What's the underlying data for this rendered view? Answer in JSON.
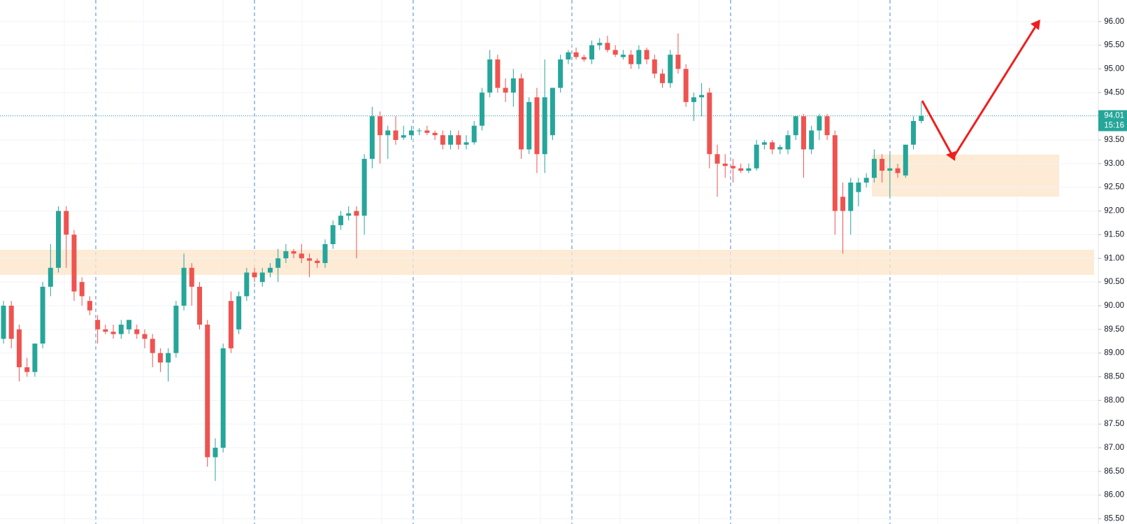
{
  "chart_data": {
    "type": "candlestick",
    "up_color": "#26a69a",
    "down_color": "#ef5350",
    "ylim": [
      85.39,
      96.455
    ],
    "yticks": [
      {
        "value": 85.5,
        "label": "85.50"
      },
      {
        "value": 86,
        "label": "86.00"
      },
      {
        "value": 86.5,
        "label": "86.50"
      },
      {
        "value": 87,
        "label": "87.00"
      },
      {
        "value": 87.5,
        "label": "87.50"
      },
      {
        "value": 88,
        "label": "88.00"
      },
      {
        "value": 88.5,
        "label": "88.50"
      },
      {
        "value": 89,
        "label": "89.00"
      },
      {
        "value": 89.5,
        "label": "89.50"
      },
      {
        "value": 90,
        "label": "90.00"
      },
      {
        "value": 90.5,
        "label": "90.50"
      },
      {
        "value": 91,
        "label": "91.00"
      },
      {
        "value": 91.5,
        "label": "91.50"
      },
      {
        "value": 92,
        "label": "92.00"
      },
      {
        "value": 92.5,
        "label": "92.50"
      },
      {
        "value": 93,
        "label": "93.00"
      },
      {
        "value": 93.5,
        "label": "93.50"
      },
      {
        "value": 94,
        "label": "94.00"
      },
      {
        "value": 94.5,
        "label": "94.50"
      },
      {
        "value": 95,
        "label": "95.00"
      },
      {
        "value": 95.5,
        "label": "95.50"
      },
      {
        "value": 96,
        "label": "96.00"
      }
    ],
    "grid": true,
    "last_price": {
      "value": 94.01,
      "label": "94.01"
    },
    "countdown": "15:16",
    "ohlc": [
      [
        89.3,
        90.1,
        89.2,
        90.0
      ],
      [
        90.0,
        90.1,
        89.1,
        89.3
      ],
      [
        89.5,
        89.6,
        88.4,
        88.7
      ],
      [
        88.7,
        88.9,
        88.5,
        88.6
      ],
      [
        88.6,
        89.2,
        88.5,
        89.2
      ],
      [
        89.2,
        90.5,
        89.1,
        90.4
      ],
      [
        90.4,
        91.3,
        90.2,
        90.8
      ],
      [
        90.8,
        92.1,
        90.7,
        92.0
      ],
      [
        92.0,
        92.1,
        90.8,
        91.5
      ],
      [
        91.5,
        91.6,
        90.1,
        90.3
      ],
      [
        90.5,
        90.6,
        90.0,
        90.2
      ],
      [
        90.1,
        90.2,
        89.8,
        89.9
      ],
      [
        89.7,
        89.8,
        89.2,
        89.5
      ],
      [
        89.5,
        89.6,
        89.4,
        89.45
      ],
      [
        89.45,
        89.6,
        89.3,
        89.4
      ],
      [
        89.4,
        89.7,
        89.3,
        89.6
      ],
      [
        89.5,
        89.7,
        89.4,
        89.7
      ],
      [
        89.5,
        89.6,
        89.3,
        89.4
      ],
      [
        89.4,
        89.5,
        89.1,
        89.3
      ],
      [
        89.3,
        89.4,
        88.7,
        89.0
      ],
      [
        89.0,
        89.1,
        88.6,
        88.8
      ],
      [
        88.8,
        89.1,
        88.4,
        89.0
      ],
      [
        89.0,
        90.1,
        88.9,
        90.0
      ],
      [
        90.0,
        91.1,
        89.9,
        90.8
      ],
      [
        90.8,
        90.9,
        90.0,
        90.4
      ],
      [
        90.4,
        90.5,
        89.5,
        89.6
      ],
      [
        89.6,
        89.7,
        86.6,
        86.8
      ],
      [
        86.8,
        87.2,
        86.3,
        87.0
      ],
      [
        87.0,
        89.2,
        86.9,
        89.1
      ],
      [
        90.1,
        90.3,
        89.0,
        89.1
      ],
      [
        89.5,
        90.3,
        89.4,
        90.2
      ],
      [
        90.2,
        90.8,
        90.1,
        90.7
      ],
      [
        90.7,
        90.8,
        90.5,
        90.6
      ],
      [
        90.5,
        90.8,
        90.4,
        90.7
      ],
      [
        90.7,
        90.9,
        90.6,
        90.8
      ],
      [
        90.8,
        91.2,
        90.5,
        91.0
      ],
      [
        91.0,
        91.3,
        90.9,
        91.15
      ],
      [
        91.15,
        91.2,
        91.0,
        91.1
      ],
      [
        91.1,
        91.3,
        90.9,
        91.0
      ],
      [
        91.0,
        91.1,
        90.6,
        90.95
      ],
      [
        90.95,
        91.0,
        90.8,
        90.9
      ],
      [
        90.9,
        91.4,
        90.8,
        91.3
      ],
      [
        91.3,
        91.8,
        91.2,
        91.7
      ],
      [
        91.7,
        92.0,
        91.6,
        91.9
      ],
      [
        91.9,
        92.1,
        91.8,
        91.95
      ],
      [
        92.0,
        92.1,
        91.0,
        91.9
      ],
      [
        91.9,
        93.2,
        91.5,
        93.1
      ],
      [
        93.1,
        94.2,
        92.9,
        94.0
      ],
      [
        94.0,
        94.1,
        93.0,
        93.6
      ],
      [
        93.6,
        93.8,
        93.1,
        93.7
      ],
      [
        93.7,
        94.0,
        93.4,
        93.5
      ],
      [
        93.55,
        93.8,
        93.5,
        93.6
      ],
      [
        93.6,
        93.8,
        93.5,
        93.7
      ],
      [
        93.7,
        93.75,
        93.6,
        93.7
      ],
      [
        93.7,
        93.8,
        93.6,
        93.65
      ],
      [
        93.65,
        93.7,
        93.5,
        93.6
      ],
      [
        93.6,
        93.7,
        93.3,
        93.4
      ],
      [
        93.4,
        93.7,
        93.3,
        93.6
      ],
      [
        93.6,
        93.7,
        93.3,
        93.4
      ],
      [
        93.4,
        93.6,
        93.3,
        93.45
      ],
      [
        93.45,
        93.9,
        93.4,
        93.8
      ],
      [
        93.8,
        94.6,
        93.7,
        94.5
      ],
      [
        94.5,
        95.4,
        94.4,
        95.2
      ],
      [
        95.2,
        95.3,
        94.5,
        94.6
      ],
      [
        94.6,
        94.8,
        94.3,
        94.5
      ],
      [
        94.5,
        95.0,
        94.2,
        94.8
      ],
      [
        94.8,
        94.9,
        93.1,
        93.3
      ],
      [
        93.3,
        94.4,
        93.2,
        94.3
      ],
      [
        94.4,
        94.6,
        92.8,
        93.2
      ],
      [
        93.2,
        95.2,
        92.8,
        94.4
      ],
      [
        93.6,
        94.6,
        93.5,
        94.6
      ],
      [
        94.6,
        95.3,
        94.5,
        95.2
      ],
      [
        95.2,
        95.4,
        95.1,
        95.35
      ],
      [
        95.35,
        95.45,
        95.2,
        95.25
      ],
      [
        95.25,
        95.3,
        95.15,
        95.2
      ],
      [
        95.2,
        95.6,
        95.1,
        95.5
      ],
      [
        95.5,
        95.65,
        95.4,
        95.55
      ],
      [
        95.55,
        95.7,
        95.35,
        95.4
      ],
      [
        95.4,
        95.5,
        95.25,
        95.3
      ],
      [
        95.25,
        95.4,
        95.2,
        95.3
      ],
      [
        95.3,
        95.4,
        95.0,
        95.1
      ],
      [
        95.1,
        95.5,
        95.0,
        95.4
      ],
      [
        95.4,
        95.45,
        95.1,
        95.2
      ],
      [
        95.2,
        95.3,
        94.8,
        94.9
      ],
      [
        94.9,
        95.0,
        94.6,
        94.7
      ],
      [
        94.7,
        95.4,
        94.6,
        95.3
      ],
      [
        95.3,
        95.75,
        94.9,
        95.0
      ],
      [
        95.0,
        95.1,
        94.2,
        94.3
      ],
      [
        94.3,
        94.5,
        93.9,
        94.4
      ],
      [
        94.4,
        94.7,
        94.0,
        94.45
      ],
      [
        94.5,
        94.6,
        92.9,
        93.2
      ],
      [
        93.2,
        93.4,
        92.3,
        93.0
      ],
      [
        93.0,
        93.2,
        92.7,
        92.95
      ],
      [
        92.95,
        93.1,
        92.6,
        92.9
      ],
      [
        92.9,
        93.0,
        92.8,
        92.85
      ],
      [
        92.85,
        93.0,
        92.8,
        92.9
      ],
      [
        92.9,
        93.5,
        92.85,
        93.4
      ],
      [
        93.4,
        93.5,
        93.3,
        93.45
      ],
      [
        93.45,
        93.5,
        93.2,
        93.3
      ],
      [
        93.3,
        93.4,
        93.2,
        93.35
      ],
      [
        93.3,
        93.7,
        93.2,
        93.6
      ],
      [
        93.6,
        94.0,
        93.5,
        94.0
      ],
      [
        94.0,
        94.05,
        92.7,
        93.3
      ],
      [
        93.3,
        93.8,
        93.2,
        93.7
      ],
      [
        93.7,
        94.05,
        93.5,
        94.0
      ],
      [
        94.0,
        94.05,
        93.5,
        93.6
      ],
      [
        93.6,
        93.7,
        91.5,
        92.0
      ],
      [
        92.3,
        92.6,
        91.1,
        92.0
      ],
      [
        92.0,
        92.7,
        91.5,
        92.6
      ],
      [
        92.4,
        92.7,
        92.1,
        92.6
      ],
      [
        92.6,
        92.8,
        92.5,
        92.7
      ],
      [
        92.7,
        93.3,
        92.6,
        93.1
      ],
      [
        93.1,
        93.2,
        92.6,
        92.85
      ],
      [
        92.85,
        93.2,
        92.3,
        92.9
      ],
      [
        92.9,
        93.0,
        92.7,
        92.8
      ],
      [
        92.75,
        93.4,
        92.7,
        93.4
      ],
      [
        93.4,
        94.0,
        93.3,
        93.9
      ],
      [
        93.9,
        94.3,
        93.85,
        94.01
      ]
    ]
  }
}
